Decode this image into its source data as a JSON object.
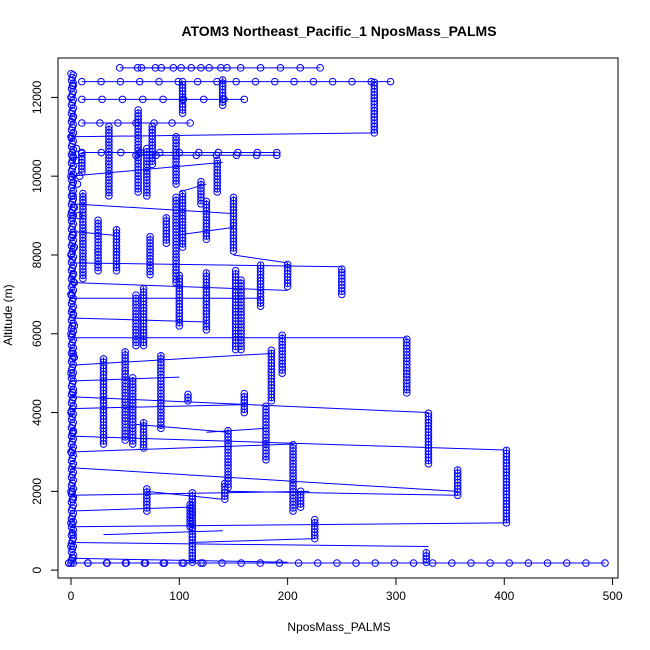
{
  "chart_data": {
    "type": "scatter",
    "title": "ATOM3 Northeast_Pacific_1 NposMass_PALMS",
    "xlabel": "NposMass_PALMS",
    "ylabel": "Altitude (m)",
    "xlim": [
      -12,
      505
    ],
    "ylim": [
      -200,
      13000
    ],
    "x_ticks": [
      0,
      100,
      200,
      300,
      400,
      500
    ],
    "y_ticks": [
      0,
      2000,
      4000,
      6000,
      8000,
      10000,
      12000
    ],
    "grid": false,
    "color": "#0000ff",
    "series": [
      {
        "profile": [
          [
            0,
            180
          ],
          [
            0,
            600
          ],
          [
            0,
            1200
          ],
          [
            0,
            2000
          ],
          [
            0,
            3000
          ],
          [
            0,
            4000
          ],
          [
            0,
            5000
          ],
          [
            0,
            6000
          ],
          [
            0,
            7000
          ],
          [
            0,
            8000
          ],
          [
            0,
            9000
          ],
          [
            0,
            10000
          ],
          [
            0,
            11000
          ],
          [
            0,
            12000
          ],
          [
            0,
            12600
          ],
          [
            2,
            300
          ],
          [
            2,
            900
          ],
          [
            2,
            1800
          ],
          [
            2,
            2700
          ],
          [
            2,
            3500
          ],
          [
            2,
            4500
          ],
          [
            2,
            5500
          ],
          [
            2,
            6500
          ],
          [
            2,
            7500
          ],
          [
            2,
            8500
          ],
          [
            2,
            9500
          ],
          [
            2,
            10500
          ],
          [
            2,
            11500
          ],
          [
            2,
            12300
          ],
          [
            3,
            5400
          ],
          [
            3,
            6200
          ],
          [
            3,
            7300
          ],
          [
            3,
            8200
          ],
          [
            3,
            9200
          ],
          [
            5,
            10400
          ],
          [
            5,
            10700
          ],
          [
            6,
            9800
          ],
          [
            7,
            9000
          ],
          [
            8,
            10000
          ]
        ],
        "columns": [
          [
            10,
            10100,
            10600
          ],
          [
            11,
            7400,
            9600
          ],
          [
            25,
            7600,
            8900
          ],
          [
            30,
            3200,
            5400
          ],
          [
            35,
            9500,
            11300
          ],
          [
            42,
            7600,
            8700
          ],
          [
            50,
            3300,
            5600
          ],
          [
            57,
            3200,
            4900
          ],
          [
            60,
            5700,
            7000
          ],
          [
            62,
            9600,
            11700
          ],
          [
            67,
            5700,
            7200
          ],
          [
            67,
            3100,
            3800
          ],
          [
            70,
            1500,
            2100
          ],
          [
            70,
            9500,
            10700
          ],
          [
            73,
            7500,
            8500
          ],
          [
            75,
            10300,
            11300
          ],
          [
            83,
            3600,
            5500
          ],
          [
            88,
            8300,
            9000
          ],
          [
            97,
            7300,
            9500
          ],
          [
            97,
            9800,
            11000
          ],
          [
            100,
            6200,
            7500
          ],
          [
            103,
            8200,
            9600
          ],
          [
            103,
            11600,
            12400
          ],
          [
            108,
            4300,
            4500
          ],
          [
            110,
            1100,
            1700
          ],
          [
            112,
            200,
            2000
          ],
          [
            120,
            9300,
            9900
          ],
          [
            125,
            6100,
            7600
          ],
          [
            125,
            8400,
            9400
          ],
          [
            135,
            9600,
            10400
          ],
          [
            140,
            11800,
            12500
          ],
          [
            142,
            1800,
            2200
          ],
          [
            145,
            2100,
            3600
          ],
          [
            150,
            8100,
            9500
          ],
          [
            152,
            5600,
            7600
          ],
          [
            157,
            5600,
            7400
          ],
          [
            160,
            4000,
            4500
          ],
          [
            175,
            6700,
            7800
          ],
          [
            180,
            2800,
            4200
          ],
          [
            185,
            4300,
            5600
          ],
          [
            195,
            5000,
            6000
          ],
          [
            200,
            7200,
            7800
          ],
          [
            205,
            1500,
            3200
          ],
          [
            212,
            1600,
            2000
          ],
          [
            225,
            800,
            1300
          ],
          [
            250,
            7000,
            7700
          ],
          [
            280,
            11100,
            12400
          ],
          [
            310,
            4500,
            5900
          ],
          [
            328,
            200,
            500
          ],
          [
            330,
            2700,
            4000
          ],
          [
            357,
            1900,
            2600
          ],
          [
            402,
            1200,
            3100
          ]
        ],
        "rows": [
          [
            45,
            144,
            12750
          ],
          [
            65,
            230,
            12750
          ],
          [
            10,
            295,
            12400
          ],
          [
            10,
            160,
            11950
          ],
          [
            10,
            110,
            11350
          ],
          [
            10,
            190,
            10600
          ],
          [
            -2,
            493,
            180
          ],
          [
            -2,
            120,
            180
          ],
          [
            60,
            190,
            10530
          ]
        ],
        "links": [
          [
            0,
            11000,
            282,
            11100
          ],
          [
            0,
            10000,
            140,
            10350
          ],
          [
            0,
            9300,
            150,
            9050
          ],
          [
            0,
            8600,
            40,
            8500
          ],
          [
            0,
            7800,
            250,
            7700
          ],
          [
            0,
            7300,
            200,
            7100
          ],
          [
            0,
            6900,
            175,
            6900
          ],
          [
            0,
            6400,
            125,
            6300
          ],
          [
            0,
            5900,
            310,
            5900
          ],
          [
            0,
            5200,
            185,
            5500
          ],
          [
            0,
            4800,
            100,
            4900
          ],
          [
            0,
            4400,
            330,
            4000
          ],
          [
            0,
            4100,
            160,
            4200
          ],
          [
            0,
            3400,
            400,
            3050
          ],
          [
            0,
            3000,
            205,
            3200
          ],
          [
            0,
            2600,
            357,
            2000
          ],
          [
            0,
            1900,
            220,
            2000
          ],
          [
            0,
            1500,
            110,
            1600
          ],
          [
            0,
            1100,
            400,
            1200
          ],
          [
            0,
            700,
            330,
            600
          ],
          [
            0,
            300,
            200,
            200
          ],
          [
            70,
            2000,
            140,
            1800
          ],
          [
            145,
            2000,
            357,
            1900
          ],
          [
            110,
            700,
            225,
            800
          ],
          [
            30,
            900,
            140,
            1000
          ],
          [
            125,
            3500,
            180,
            3600
          ],
          [
            60,
            3700,
            145,
            3500
          ],
          [
            150,
            8000,
            200,
            7800
          ],
          [
            97,
            8500,
            150,
            8700
          ],
          [
            100,
            9600,
            125,
            9800
          ]
        ]
      }
    ]
  }
}
